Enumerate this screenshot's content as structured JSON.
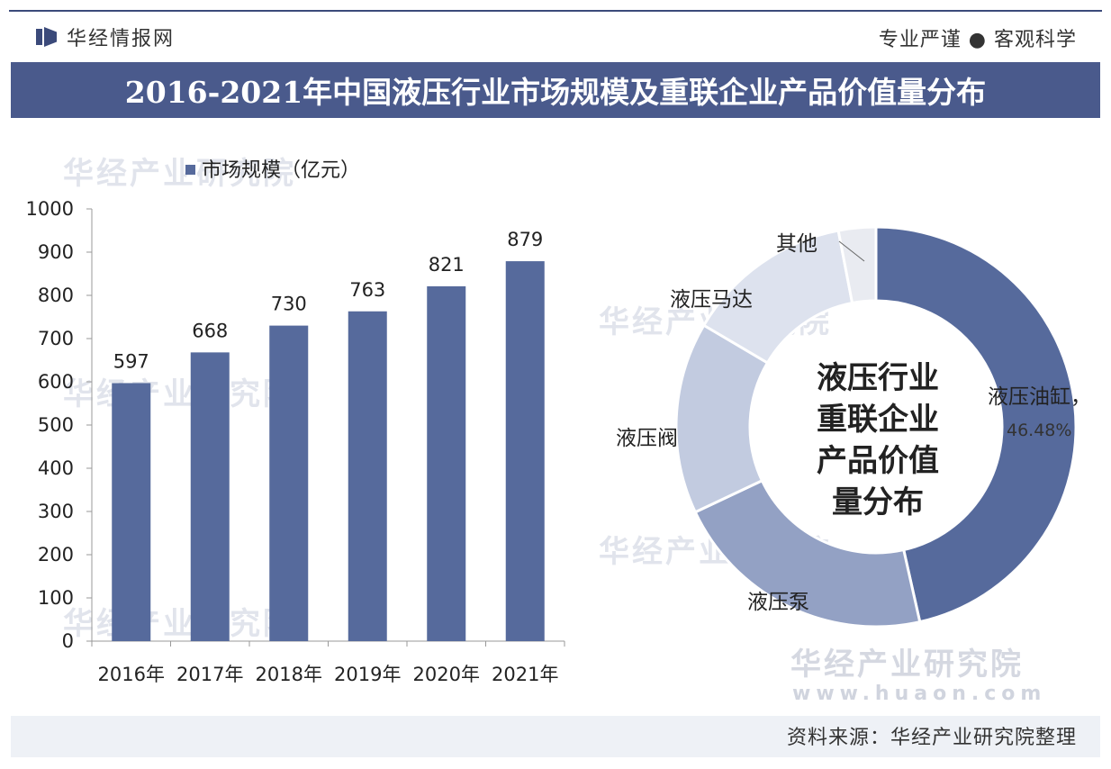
{
  "header": {
    "site_name": "华经情报网",
    "tagline": "专业严谨 ● 客观科学"
  },
  "title": "2016-2021年中国液压行业市场规模及重联企业产品价值量分布",
  "source": "资料来源：华经产业研究院整理",
  "watermark": {
    "name": "华经产业研究院",
    "url": "www.huaon.com"
  },
  "colors": {
    "bar": "#566a9c",
    "title_bg": "#4a5a8c",
    "donut": [
      "#566a9c",
      "#93a1c4",
      "#c2cbe0",
      "#dde2ee",
      "#e9ebf1"
    ]
  },
  "chart_data": [
    {
      "type": "bar",
      "legend": "市场规模（亿元）",
      "categories": [
        "2016年",
        "2017年",
        "2018年",
        "2019年",
        "2020年",
        "2021年"
      ],
      "values": [
        597,
        668,
        730,
        763,
        821,
        879
      ],
      "ylim": [
        0,
        1000
      ],
      "yticks": [
        0,
        100,
        200,
        300,
        400,
        500,
        600,
        700,
        800,
        900,
        1000
      ],
      "grid": false
    },
    {
      "type": "pie",
      "center_text": [
        "液压行业",
        "重联企业",
        "产品价值",
        "量分布"
      ],
      "slices": [
        {
          "label": "液压油缸",
          "value": 46.48,
          "value_label": "46.48%"
        },
        {
          "label": "液压泵",
          "value": 21.5
        },
        {
          "label": "液压阀",
          "value": 15.5
        },
        {
          "label": "液压马达",
          "value": 13.5
        },
        {
          "label": "其他",
          "value": 3.02
        }
      ]
    }
  ]
}
